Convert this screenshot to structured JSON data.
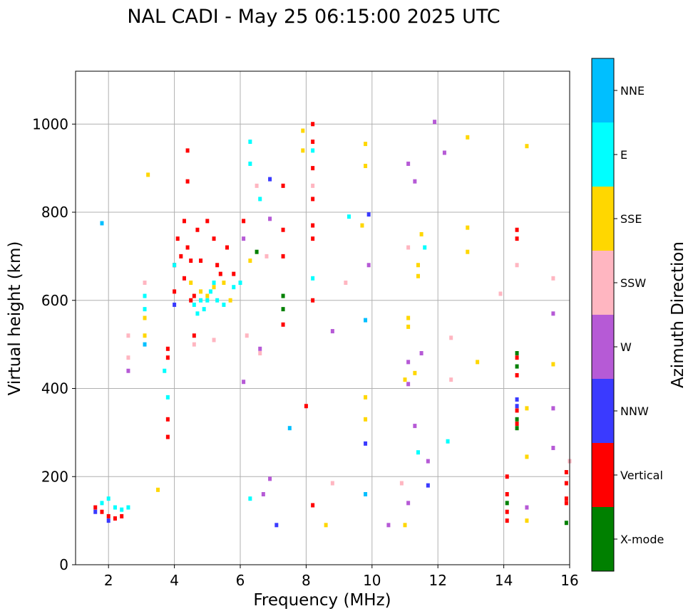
{
  "chart_data": {
    "type": "scatter",
    "title": "NAL CADI - May 25 06:15:00 2025 UTC",
    "xlabel": "Frequency (MHz)",
    "ylabel": "Virtual height (km)",
    "xlim": [
      1.0,
      16.0
    ],
    "ylim": [
      0,
      1120
    ],
    "xticks": [
      2,
      4,
      6,
      8,
      10,
      12,
      14,
      16
    ],
    "yticks": [
      0,
      200,
      400,
      600,
      800,
      1000
    ],
    "grid": true,
    "colorbar": {
      "label": "Azimuth Direction",
      "categories": [
        {
          "name": "X-mode",
          "color": "#008000"
        },
        {
          "name": "Vertical",
          "color": "#ff0000"
        },
        {
          "name": "NNW",
          "color": "#3a3aff"
        },
        {
          "name": "W",
          "color": "#b65ad6"
        },
        {
          "name": "SSW",
          "color": "#ffb6c1"
        },
        {
          "name": "SSE",
          "color": "#ffd700"
        },
        {
          "name": "E",
          "color": "#00ffff"
        },
        {
          "name": "NNE",
          "color": "#00bfff"
        }
      ]
    },
    "series": [
      {
        "name": "Vertical",
        "points": [
          [
            1.6,
            130
          ],
          [
            1.8,
            120
          ],
          [
            2.0,
            110
          ],
          [
            2.2,
            105
          ],
          [
            2.4,
            110
          ],
          [
            3.8,
            290
          ],
          [
            3.8,
            330
          ],
          [
            3.8,
            470
          ],
          [
            3.8,
            490
          ],
          [
            4.0,
            620
          ],
          [
            4.0,
            680
          ],
          [
            4.1,
            740
          ],
          [
            4.2,
            700
          ],
          [
            4.3,
            650
          ],
          [
            4.3,
            780
          ],
          [
            4.4,
            720
          ],
          [
            4.4,
            870
          ],
          [
            4.4,
            940
          ],
          [
            4.5,
            600
          ],
          [
            4.5,
            690
          ],
          [
            4.6,
            610
          ],
          [
            4.6,
            520
          ],
          [
            4.7,
            760
          ],
          [
            4.8,
            690
          ],
          [
            5.0,
            780
          ],
          [
            5.2,
            740
          ],
          [
            5.3,
            680
          ],
          [
            5.4,
            660
          ],
          [
            5.6,
            720
          ],
          [
            5.8,
            660
          ],
          [
            6.1,
            780
          ],
          [
            7.3,
            760
          ],
          [
            7.3,
            700
          ],
          [
            7.3,
            860
          ],
          [
            7.3,
            545
          ],
          [
            8.2,
            1000
          ],
          [
            8.2,
            960
          ],
          [
            8.2,
            900
          ],
          [
            8.2,
            830
          ],
          [
            8.2,
            770
          ],
          [
            8.2,
            740
          ],
          [
            8.2,
            600
          ],
          [
            8.0,
            360
          ],
          [
            8.2,
            135
          ],
          [
            14.1,
            200
          ],
          [
            14.1,
            160
          ],
          [
            14.1,
            120
          ],
          [
            14.1,
            100
          ],
          [
            14.4,
            760
          ],
          [
            14.4,
            740
          ],
          [
            14.4,
            470
          ],
          [
            14.4,
            430
          ],
          [
            14.4,
            350
          ],
          [
            14.4,
            320
          ],
          [
            15.9,
            210
          ],
          [
            15.9,
            185
          ],
          [
            15.9,
            150
          ],
          [
            15.9,
            140
          ]
        ]
      },
      {
        "name": "X-mode",
        "points": [
          [
            7.3,
            610
          ],
          [
            7.3,
            580
          ],
          [
            6.5,
            710
          ],
          [
            14.1,
            140
          ],
          [
            14.4,
            480
          ],
          [
            14.4,
            450
          ],
          [
            14.4,
            330
          ],
          [
            14.4,
            310
          ],
          [
            15.9,
            95
          ]
        ]
      },
      {
        "name": "E",
        "points": [
          [
            1.8,
            140
          ],
          [
            2.0,
            150
          ],
          [
            2.2,
            130
          ],
          [
            2.4,
            125
          ],
          [
            2.6,
            130
          ],
          [
            3.1,
            610
          ],
          [
            3.1,
            580
          ],
          [
            3.7,
            440
          ],
          [
            3.8,
            380
          ],
          [
            4.0,
            680
          ],
          [
            4.6,
            590
          ],
          [
            4.7,
            570
          ],
          [
            4.8,
            600
          ],
          [
            4.9,
            580
          ],
          [
            5.0,
            600
          ],
          [
            5.1,
            620
          ],
          [
            5.2,
            640
          ],
          [
            5.3,
            600
          ],
          [
            5.5,
            590
          ],
          [
            5.8,
            630
          ],
          [
            6.0,
            640
          ],
          [
            6.3,
            960
          ],
          [
            6.3,
            910
          ],
          [
            6.3,
            150
          ],
          [
            6.6,
            830
          ],
          [
            8.2,
            940
          ],
          [
            8.2,
            650
          ],
          [
            9.3,
            790
          ],
          [
            11.6,
            720
          ],
          [
            11.4,
            255
          ],
          [
            12.3,
            280
          ]
        ]
      },
      {
        "name": "SSE",
        "points": [
          [
            3.1,
            560
          ],
          [
            3.1,
            520
          ],
          [
            3.2,
            885
          ],
          [
            3.5,
            170
          ],
          [
            4.5,
            640
          ],
          [
            4.8,
            620
          ],
          [
            5.0,
            610
          ],
          [
            5.2,
            630
          ],
          [
            5.5,
            640
          ],
          [
            5.7,
            600
          ],
          [
            6.3,
            690
          ],
          [
            7.9,
            985
          ],
          [
            7.9,
            940
          ],
          [
            9.8,
            955
          ],
          [
            9.8,
            905
          ],
          [
            9.8,
            380
          ],
          [
            9.8,
            330
          ],
          [
            9.7,
            770
          ],
          [
            11.1,
            560
          ],
          [
            11.1,
            540
          ],
          [
            11.4,
            680
          ],
          [
            11.4,
            655
          ],
          [
            11.5,
            750
          ],
          [
            11.3,
            435
          ],
          [
            11.0,
            420
          ],
          [
            12.9,
            970
          ],
          [
            12.9,
            765
          ],
          [
            12.9,
            710
          ],
          [
            13.2,
            460
          ],
          [
            14.7,
            950
          ],
          [
            14.7,
            355
          ],
          [
            14.7,
            245
          ],
          [
            14.7,
            100
          ],
          [
            15.5,
            455
          ],
          [
            8.6,
            90
          ],
          [
            11.0,
            90
          ]
        ]
      },
      {
        "name": "SSW",
        "points": [
          [
            2.6,
            520
          ],
          [
            2.6,
            470
          ],
          [
            3.1,
            640
          ],
          [
            4.6,
            500
          ],
          [
            5.2,
            510
          ],
          [
            6.2,
            520
          ],
          [
            6.6,
            480
          ],
          [
            6.5,
            860
          ],
          [
            6.8,
            700
          ],
          [
            8.2,
            860
          ],
          [
            9.2,
            640
          ],
          [
            10.9,
            185
          ],
          [
            11.1,
            720
          ],
          [
            12.4,
            515
          ],
          [
            12.4,
            420
          ],
          [
            13.9,
            615
          ],
          [
            14.4,
            680
          ],
          [
            15.5,
            650
          ],
          [
            16.0,
            235
          ],
          [
            8.8,
            185
          ]
        ]
      },
      {
        "name": "W",
        "points": [
          [
            2.6,
            440
          ],
          [
            6.1,
            740
          ],
          [
            6.1,
            415
          ],
          [
            6.6,
            490
          ],
          [
            6.7,
            160
          ],
          [
            6.9,
            195
          ],
          [
            6.9,
            785
          ],
          [
            8.8,
            530
          ],
          [
            9.9,
            680
          ],
          [
            10.5,
            90
          ],
          [
            11.1,
            910
          ],
          [
            11.1,
            460
          ],
          [
            11.1,
            410
          ],
          [
            11.1,
            140
          ],
          [
            11.3,
            870
          ],
          [
            11.3,
            315
          ],
          [
            11.5,
            480
          ],
          [
            11.7,
            235
          ],
          [
            11.9,
            1005
          ],
          [
            12.2,
            935
          ],
          [
            14.7,
            130
          ],
          [
            15.5,
            570
          ],
          [
            15.5,
            355
          ],
          [
            15.5,
            265
          ]
        ]
      },
      {
        "name": "NNW",
        "points": [
          [
            1.6,
            120
          ],
          [
            2.0,
            100
          ],
          [
            4.0,
            590
          ],
          [
            6.9,
            875
          ],
          [
            7.1,
            90
          ],
          [
            9.8,
            275
          ],
          [
            9.9,
            795
          ],
          [
            11.7,
            180
          ],
          [
            14.4,
            375
          ],
          [
            14.4,
            360
          ]
        ]
      },
      {
        "name": "NNE",
        "points": [
          [
            1.8,
            775
          ],
          [
            3.1,
            500
          ],
          [
            7.5,
            310
          ],
          [
            9.8,
            555
          ],
          [
            9.8,
            160
          ]
        ]
      }
    ]
  }
}
